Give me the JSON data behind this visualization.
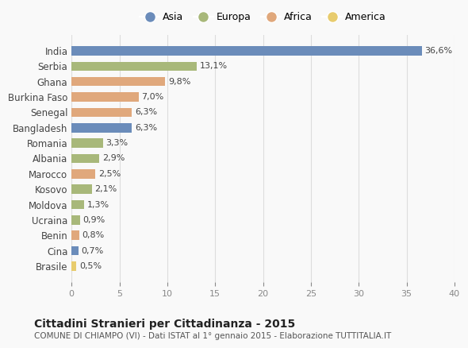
{
  "countries": [
    "India",
    "Serbia",
    "Ghana",
    "Burkina Faso",
    "Senegal",
    "Bangladesh",
    "Romania",
    "Albania",
    "Marocco",
    "Kosovo",
    "Moldova",
    "Ucraina",
    "Benin",
    "Cina",
    "Brasile"
  ],
  "values": [
    36.6,
    13.1,
    9.8,
    7.0,
    6.3,
    6.3,
    3.3,
    2.9,
    2.5,
    2.1,
    1.3,
    0.9,
    0.8,
    0.7,
    0.5
  ],
  "labels": [
    "36,6%",
    "13,1%",
    "9,8%",
    "7,0%",
    "6,3%",
    "6,3%",
    "3,3%",
    "2,9%",
    "2,5%",
    "2,1%",
    "1,3%",
    "0,9%",
    "0,8%",
    "0,7%",
    "0,5%"
  ],
  "continents": [
    "Asia",
    "Europa",
    "Africa",
    "Africa",
    "Africa",
    "Asia",
    "Europa",
    "Europa",
    "Africa",
    "Europa",
    "Europa",
    "Europa",
    "Africa",
    "Asia",
    "America"
  ],
  "continent_colors": {
    "Asia": "#6b8cba",
    "Europa": "#a8b87a",
    "Africa": "#e0a87c",
    "America": "#e8cc6e"
  },
  "legend_order": [
    "Asia",
    "Europa",
    "Africa",
    "America"
  ],
  "title": "Cittadini Stranieri per Cittadinanza - 2015",
  "subtitle": "COMUNE DI CHIAMPO (VI) - Dati ISTAT al 1° gennaio 2015 - Elaborazione TUTTITALIA.IT",
  "xlim": [
    0,
    40
  ],
  "xticks": [
    0,
    5,
    10,
    15,
    20,
    25,
    30,
    35,
    40
  ],
  "background_color": "#f9f9f9",
  "grid_color": "#dddddd",
  "bar_height": 0.6
}
